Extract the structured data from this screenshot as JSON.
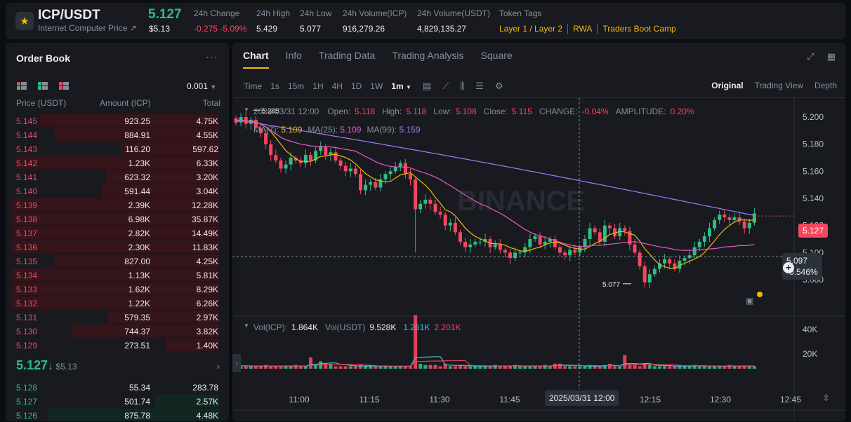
{
  "header": {
    "pair": "ICP/USDT",
    "subtitle": "Internet Computer Price ↗",
    "last_price": "5.127",
    "last_price_usd": "$5.13",
    "stats": [
      {
        "label": "24h Change",
        "value": "-0.275 -5.09%",
        "negative": true
      },
      {
        "label": "24h High",
        "value": "5.429"
      },
      {
        "label": "24h Low",
        "value": "5.077"
      },
      {
        "label": "24h Volume(ICP)",
        "value": "916,279.26"
      },
      {
        "label": "24h Volume(USDT)",
        "value": "4,829,135.27"
      }
    ],
    "token_tags_label": "Token Tags",
    "tags": [
      "Layer 1 / Layer 2",
      "RWA",
      "Traders Boot Camp"
    ]
  },
  "orderbook": {
    "title": "Order Book",
    "more_icon": "more-icon",
    "tick_size": "0.001",
    "headers": {
      "price": "Price (USDT)",
      "amount": "Amount (ICP)",
      "total": "Total"
    },
    "asks": [
      {
        "price": "5.145",
        "amount": "923.25",
        "total": "4.75K",
        "depth": 0.84
      },
      {
        "price": "5.144",
        "amount": "884.91",
        "total": "4.55K",
        "depth": 0.77
      },
      {
        "price": "5.143",
        "amount": "116.20",
        "total": "597.62",
        "depth": 0.46
      },
      {
        "price": "5.142",
        "amount": "1.23K",
        "total": "6.33K",
        "depth": 0.95
      },
      {
        "price": "5.141",
        "amount": "623.32",
        "total": "3.20K",
        "depth": 0.53
      },
      {
        "price": "5.140",
        "amount": "591.44",
        "total": "3.04K",
        "depth": 0.55
      },
      {
        "price": "5.139",
        "amount": "2.39K",
        "total": "12.28K",
        "depth": 0.97
      },
      {
        "price": "5.138",
        "amount": "6.98K",
        "total": "35.87K",
        "depth": 0.97
      },
      {
        "price": "5.137",
        "amount": "2.82K",
        "total": "14.49K",
        "depth": 0.97
      },
      {
        "price": "5.136",
        "amount": "2.30K",
        "total": "11.83K",
        "depth": 0.97
      },
      {
        "price": "5.135",
        "amount": "827.00",
        "total": "4.25K",
        "depth": 0.77
      },
      {
        "price": "5.134",
        "amount": "1.13K",
        "total": "5.81K",
        "depth": 0.97
      },
      {
        "price": "5.133",
        "amount": "1.62K",
        "total": "8.29K",
        "depth": 0.97
      },
      {
        "price": "5.132",
        "amount": "1.22K",
        "total": "6.26K",
        "depth": 0.97
      },
      {
        "price": "5.131",
        "amount": "579.35",
        "total": "2.97K",
        "depth": 0.52
      },
      {
        "price": "5.130",
        "amount": "744.37",
        "total": "3.82K",
        "depth": 0.69
      },
      {
        "price": "5.129",
        "amount": "273.51",
        "total": "1.40K",
        "depth": 0.25
      }
    ],
    "mid_price": "5.127",
    "mid_price_usd": "$5.13",
    "bids": [
      {
        "price": "5.128",
        "amount": "55.34",
        "total": "283.78",
        "depth": 0.0
      },
      {
        "price": "5.127",
        "amount": "501.74",
        "total": "2.57K",
        "depth": 0.3
      },
      {
        "price": "5.126",
        "amount": "875.78",
        "total": "4.48K",
        "depth": 0.8
      }
    ]
  },
  "chart_panel": {
    "tabs": [
      "Chart",
      "Info",
      "Trading Data",
      "Trading Analysis",
      "Square"
    ],
    "active_tab": "Chart",
    "intervals": [
      "Time",
      "1s",
      "15m",
      "1H",
      "4H",
      "1D",
      "1W",
      "1m"
    ],
    "active_interval": "1m",
    "views": [
      "Original",
      "Trading View",
      "Depth"
    ],
    "active_view": "Original",
    "ohlc": {
      "datetime": "2025/03/31 12:00",
      "open_label": "Open:",
      "open": "5.118",
      "high_label": "High:",
      "high": "5.118",
      "low_label": "Low:",
      "low": "5.108",
      "close_label": "Close:",
      "close": "5.115",
      "change_label": "CHANGE:",
      "change": "-0.04%",
      "amplitude_label": "AMPLITUDE:",
      "amplitude": "0.20%"
    },
    "ma": [
      {
        "label": "MA(7):",
        "value": "5.109",
        "color": "#f0b90b"
      },
      {
        "label": "MA(25):",
        "value": "5.109",
        "color": "#e55cc3"
      },
      {
        "label": "MA(99):",
        "value": "5.159",
        "color": "#9e7cf5"
      }
    ],
    "vol": {
      "icp_label": "Vol(ICP):",
      "icp": "1.864K",
      "usdt_label": "Vol(USDT)",
      "usdt": "9.528K",
      "v1": "1.261K",
      "v2": "2.201K"
    },
    "current_price_tag": "5.127",
    "crosshair_price": "5.097",
    "crosshair_pct": "-0.546%",
    "crosshair_time": "2025/03/31 12:00",
    "watermark": "BINANCE",
    "max_label": "5.205",
    "min_label": "5.077"
  },
  "chart_data": {
    "type": "candlestick",
    "price_axis": [
      "5.200",
      "5.180",
      "5.160",
      "5.140",
      "5.120",
      "5.100",
      "5.080"
    ],
    "price_axis_values": [
      5.2,
      5.18,
      5.16,
      5.14,
      5.12,
      5.1,
      5.08
    ],
    "volume_axis": [
      "40K",
      "20K"
    ],
    "time_axis": [
      "11:00",
      "11:15",
      "11:30",
      "11:45",
      "12:15",
      "12:30",
      "12:45"
    ],
    "time_axis_minutes": [
      0,
      15,
      30,
      45,
      75,
      90,
      105
    ],
    "closes": [
      5.196,
      5.2,
      5.195,
      5.198,
      5.192,
      5.188,
      5.18,
      5.172,
      5.168,
      5.162,
      5.165,
      5.17,
      5.168,
      5.166,
      5.172,
      5.168,
      5.175,
      5.178,
      5.172,
      5.174,
      5.168,
      5.164,
      5.16,
      5.162,
      5.158,
      5.146,
      5.15,
      5.152,
      5.148,
      5.154,
      5.158,
      5.16,
      5.163,
      5.166,
      5.158,
      5.154,
      5.132,
      5.136,
      5.139,
      5.136,
      5.13,
      5.128,
      5.12,
      5.122,
      5.115,
      5.108,
      5.104,
      5.106,
      5.108,
      5.108,
      5.11,
      5.104,
      5.106,
      5.102,
      5.1,
      5.096,
      5.1,
      5.1,
      5.104,
      5.11,
      5.112,
      5.106,
      5.108,
      5.11,
      5.104,
      5.1,
      5.098,
      5.102,
      5.1,
      5.104,
      5.11,
      5.118,
      5.115,
      5.108,
      5.12,
      5.118,
      5.112,
      5.118,
      5.116,
      5.106,
      5.1,
      5.09,
      5.078,
      5.084,
      5.088,
      5.092,
      5.095,
      5.092,
      5.088,
      5.094,
      5.096,
      5.098,
      5.104,
      5.108,
      5.112,
      5.118,
      5.124,
      5.128,
      5.126,
      5.124,
      5.126,
      5.123,
      5.118,
      5.122,
      5.129
    ],
    "volumes": [
      3,
      2,
      2,
      2,
      2,
      2,
      3,
      2,
      2,
      2,
      2,
      2,
      3,
      2,
      2,
      9,
      3,
      6,
      4,
      4,
      2,
      2,
      2,
      2,
      2,
      3,
      2,
      2,
      2,
      2,
      2,
      2,
      2,
      2,
      2,
      2,
      43,
      4,
      3,
      3,
      3,
      2,
      4,
      2,
      2,
      3,
      2,
      2,
      2,
      2,
      2,
      2,
      3,
      2,
      2,
      2,
      3,
      2,
      2,
      2,
      2,
      2,
      3,
      2,
      4,
      4,
      2,
      2,
      2,
      2,
      2,
      3,
      2,
      2,
      3,
      4,
      2,
      2,
      11,
      3,
      3,
      2,
      4,
      3,
      2,
      2,
      2,
      2,
      2,
      3,
      2,
      2,
      3,
      2,
      2,
      2,
      2,
      2,
      2,
      3,
      2,
      2,
      2,
      2,
      2
    ]
  }
}
